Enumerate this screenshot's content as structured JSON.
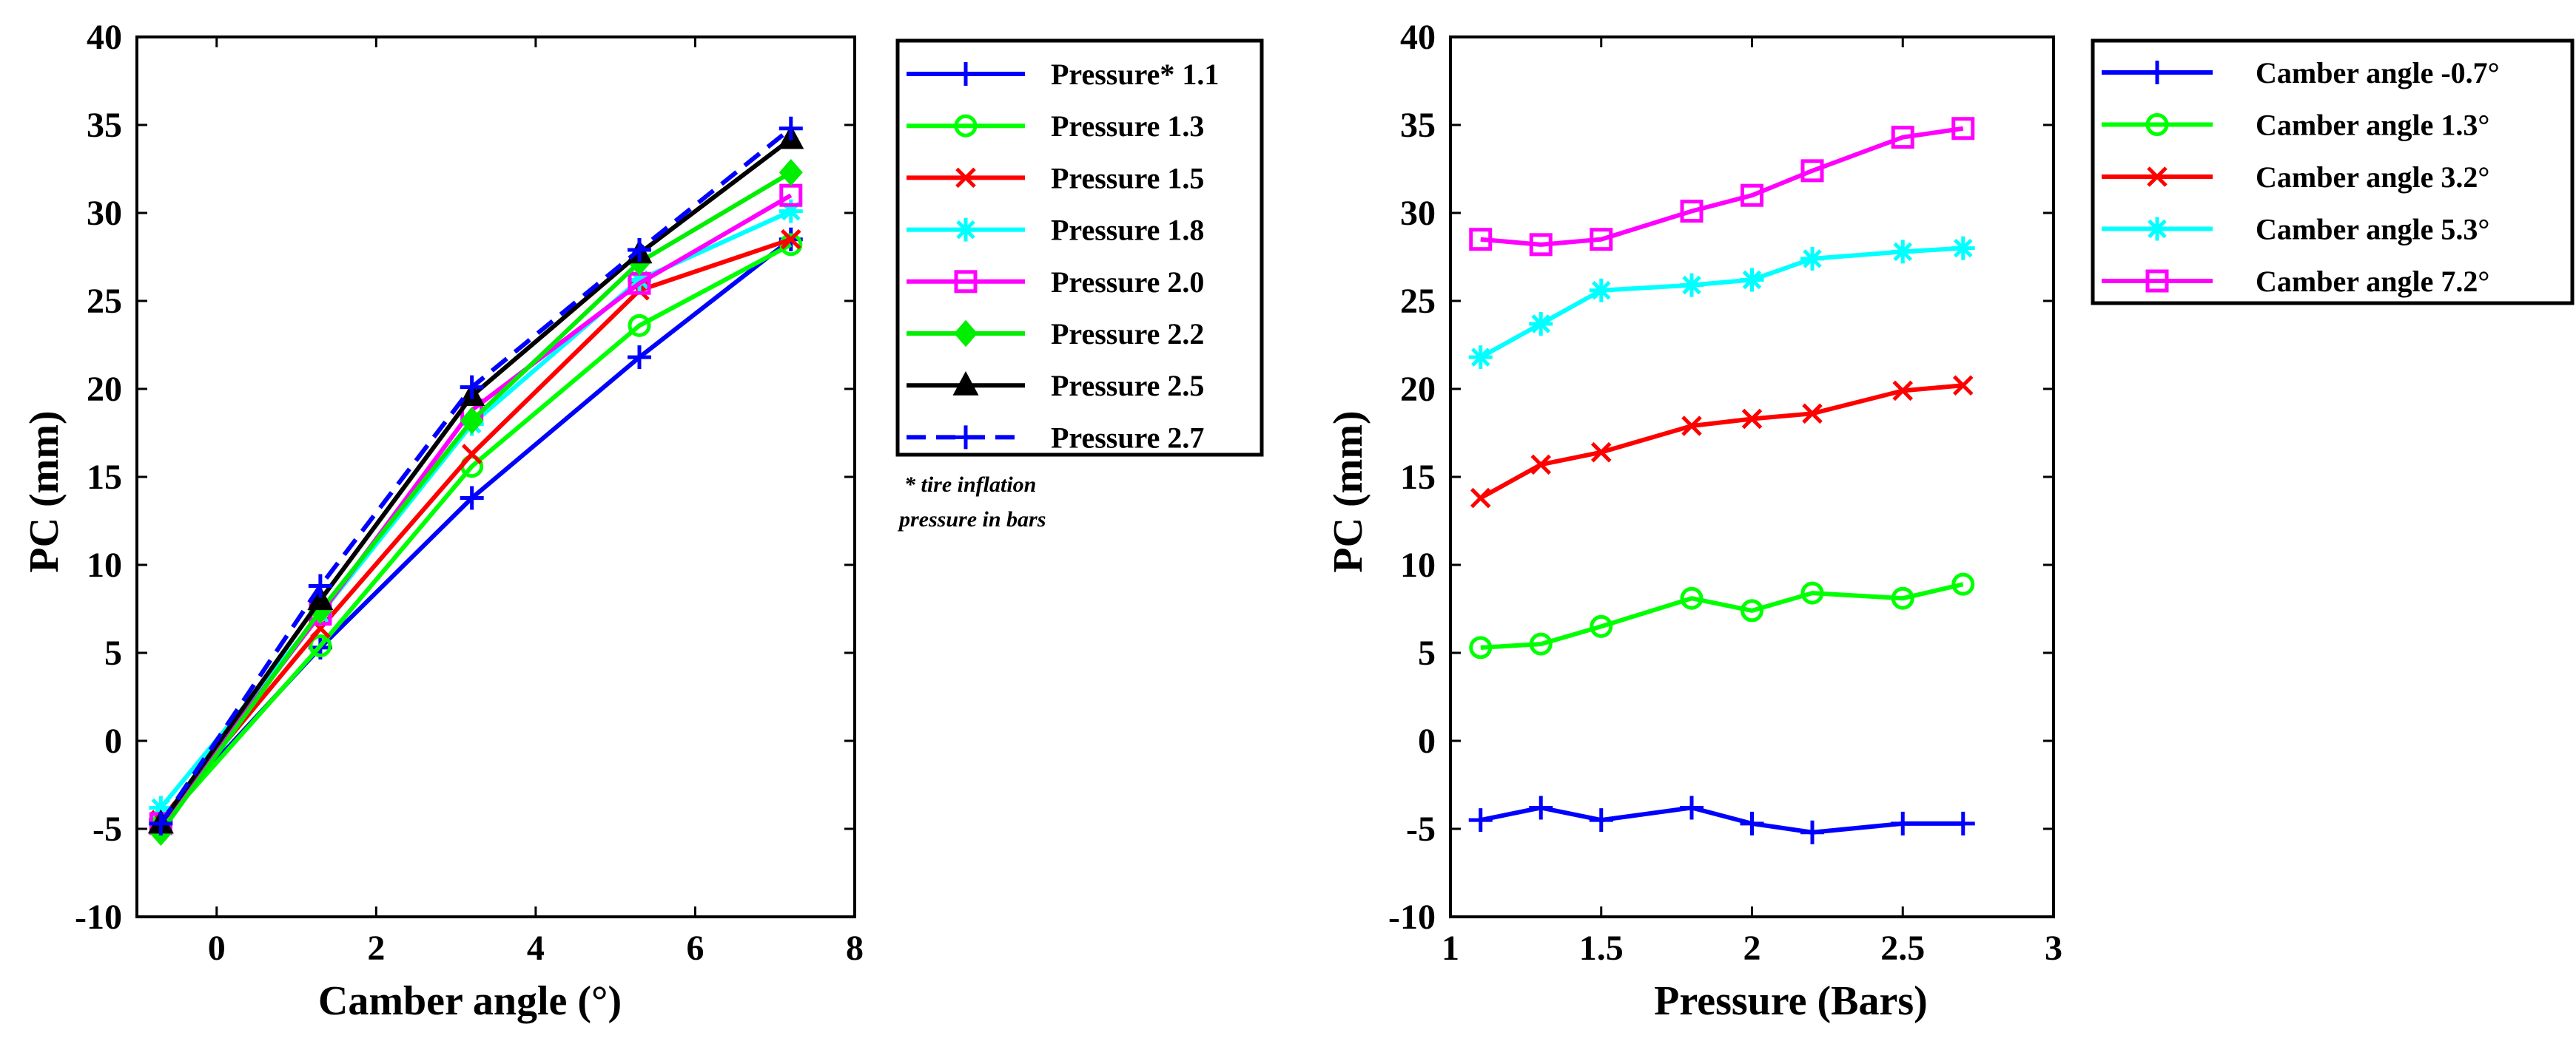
{
  "chart_data": [
    {
      "type": "line",
      "id": "left",
      "xlabel": "Camber angle (°)",
      "ylabel": "PC (mm)",
      "xlim": [
        -1,
        8
      ],
      "ylim": [
        -10,
        40
      ],
      "xticks": [
        0,
        2,
        4,
        6,
        8
      ],
      "yticks": [
        -10,
        -5,
        0,
        5,
        10,
        15,
        20,
        25,
        30,
        35,
        40
      ],
      "x": [
        -0.7,
        1.3,
        3.2,
        5.3,
        7.2
      ],
      "note": [
        "* tire inflation",
        "pressure in bars"
      ],
      "series": [
        {
          "name": "Pressure 1.1",
          "color": "#0000ff",
          "marker": "plus",
          "dash": "solid",
          "values": [
            -4.5,
            5.3,
            13.8,
            21.8,
            28.5
          ]
        },
        {
          "name": "Pressure 1.3",
          "color": "#00ff00",
          "marker": "circle",
          "dash": "solid",
          "values": [
            -4.8,
            5.4,
            15.6,
            23.6,
            28.2
          ]
        },
        {
          "name": "Pressure 1.5",
          "color": "#ff0000",
          "marker": "x",
          "dash": "solid",
          "values": [
            -4.5,
            6.4,
            16.3,
            25.6,
            28.5
          ]
        },
        {
          "name": "Pressure 1.8",
          "color": "#00ffff",
          "marker": "star",
          "dash": "solid",
          "values": [
            -3.8,
            7.2,
            18.0,
            26.2,
            30.1
          ]
        },
        {
          "name": "Pressure 2.0",
          "color": "#ff00ff",
          "marker": "square",
          "dash": "solid",
          "values": [
            -4.7,
            7.2,
            18.8,
            26.0,
            31.0
          ]
        },
        {
          "name": "Pressure 2.2",
          "color": "#00ee00",
          "marker": "diamond",
          "dash": "solid",
          "values": [
            -5.2,
            7.4,
            18.2,
            27.2,
            32.3
          ]
        },
        {
          "name": "Pressure 2.5",
          "color": "#000000",
          "marker": "triangle",
          "dash": "solid",
          "values": [
            -4.7,
            8.0,
            19.6,
            27.7,
            34.2
          ]
        },
        {
          "name": "Pressure 2.7",
          "color": "#0000ff",
          "marker": "plus",
          "dash": "dashed",
          "values": [
            -4.7,
            8.8,
            20.1,
            27.9,
            34.8
          ]
        }
      ],
      "legend_labels": [
        "Pressure* 1.1",
        "Pressure 1.3",
        "Pressure 1.5",
        "Pressure 1.8",
        "Pressure 2.0",
        "Pressure 2.2",
        "Pressure 2.5",
        "Pressure 2.7"
      ]
    },
    {
      "type": "line",
      "id": "right",
      "xlabel": "Pressure (Bars)",
      "ylabel": "PC (mm)",
      "xlim": [
        1,
        3
      ],
      "ylim": [
        -10,
        40
      ],
      "xticks": [
        1,
        1.5,
        2,
        2.5,
        3
      ],
      "yticks": [
        -10,
        -5,
        0,
        5,
        10,
        15,
        20,
        25,
        30,
        35,
        40
      ],
      "x": [
        1.1,
        1.3,
        1.5,
        1.8,
        2.0,
        2.2,
        2.5,
        2.7
      ],
      "series": [
        {
          "name": "Camber angle -0.7°",
          "color": "#0000ff",
          "marker": "plus",
          "dash": "solid",
          "values": [
            -4.5,
            -3.8,
            -4.5,
            -3.8,
            -4.7,
            -5.2,
            -4.7,
            -4.7
          ]
        },
        {
          "name": "Camber angle 1.3°",
          "color": "#00ff00",
          "marker": "circle",
          "dash": "solid",
          "values": [
            5.3,
            5.5,
            6.5,
            8.1,
            7.4,
            8.4,
            8.1,
            8.9
          ]
        },
        {
          "name": "Camber angle 3.2°",
          "color": "#ff0000",
          "marker": "x",
          "dash": "solid",
          "values": [
            13.8,
            15.7,
            16.4,
            17.9,
            18.3,
            18.6,
            19.9,
            20.2
          ]
        },
        {
          "name": "Camber angle 5.3°",
          "color": "#00ffff",
          "marker": "star",
          "dash": "solid",
          "values": [
            21.8,
            23.7,
            25.6,
            25.9,
            26.2,
            27.4,
            27.8,
            28.0
          ]
        },
        {
          "name": "Camber angle 7.2°",
          "color": "#ff00ff",
          "marker": "square",
          "dash": "solid",
          "values": [
            28.5,
            28.2,
            28.5,
            30.1,
            31.0,
            32.4,
            34.3,
            34.8
          ]
        }
      ],
      "legend_labels": [
        "Camber angle -0.7°",
        "Camber angle 1.3°",
        "Camber angle 3.2°",
        "Camber angle 5.3°",
        "Camber angle 7.2°"
      ]
    }
  ]
}
